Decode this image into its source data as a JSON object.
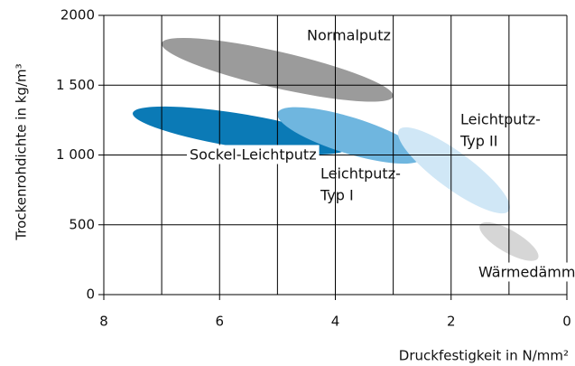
{
  "chart_data": {
    "type": "ellipse-regions",
    "xlabel": "Druckfestigkeit in N/mm²",
    "ylabel": "Trockenrohdichte in kg/m³",
    "xlim": [
      8,
      0
    ],
    "xticks": [
      8,
      6,
      4,
      2,
      0
    ],
    "x_minor_ticks": [
      7,
      5,
      3,
      1
    ],
    "ylim": [
      0,
      2000
    ],
    "yticks": [
      0,
      500,
      {
        "value": 1000,
        "label": "1 000"
      },
      {
        "value": 1500,
        "label": "1 500"
      },
      2000
    ],
    "grid": true,
    "series": [
      {
        "name": [
          "Normalputz"
        ],
        "color": "#9b9b9b",
        "x": [
          7.0,
          3.0
        ],
        "y": [
          1800,
          1420
        ],
        "thickness": 130
      },
      {
        "name": [
          "Sockel-Leichtputz"
        ],
        "color": "#0b7ab6",
        "x": [
          7.5,
          3.8
        ],
        "y": [
          1300,
          1050
        ],
        "thickness": 120
      },
      {
        "name": [
          "Leichtputz-",
          "Typ I"
        ],
        "color": "#6fb6df",
        "x": [
          5.0,
          2.5
        ],
        "y": [
          1300,
          980
        ],
        "thickness": 130
      },
      {
        "name": [
          "Leichtputz-",
          "Typ II"
        ],
        "color": "#d0e7f6",
        "x": [
          2.9,
          1.0
        ],
        "y": [
          1180,
          600
        ],
        "thickness": 130
      },
      {
        "name": [
          "Wärmedämmputz"
        ],
        "color": "#d6d6d6",
        "x": [
          1.5,
          0.5
        ],
        "y": [
          500,
          260
        ],
        "thickness": 80
      }
    ]
  }
}
